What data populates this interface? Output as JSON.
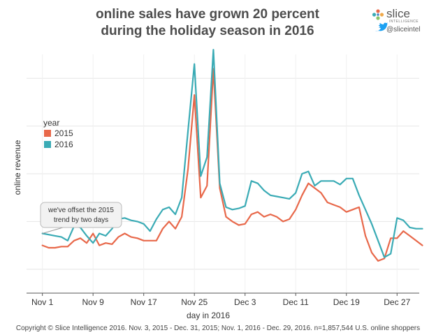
{
  "chart_data": {
    "type": "line",
    "title": "online sales have grown 20 percent during the holiday season in 2016",
    "title_lines": [
      "online sales have grown 20 percent",
      "during the holiday season in 2016"
    ],
    "xlabel": "day in 2016",
    "ylabel": "online revenue",
    "x_start": "Nov 1",
    "x_ticks": [
      {
        "day": 0,
        "label": "Nov 1"
      },
      {
        "day": 8,
        "label": "Nov 9"
      },
      {
        "day": 16,
        "label": "Nov 17"
      },
      {
        "day": 24,
        "label": "Nov 25"
      },
      {
        "day": 32,
        "label": "Dec 3"
      },
      {
        "day": 40,
        "label": "Dec 11"
      },
      {
        "day": 48,
        "label": "Dec 19"
      },
      {
        "day": 56,
        "label": "Dec 27"
      }
    ],
    "xlim": [
      -2.5,
      59.5
    ],
    "ylim": [
      0,
      100
    ],
    "y_gridlines": [
      10,
      30,
      50,
      70,
      90
    ],
    "y_tick_labels_shown": false,
    "legend": {
      "title": "year",
      "position": "left"
    },
    "series": [
      {
        "name": "2015",
        "color": "#e8684a",
        "x_start": 0,
        "values": [
          20,
          19,
          19,
          19.5,
          19.5,
          22,
          23,
          21,
          25,
          20,
          21,
          20.5,
          23.5,
          25,
          23.5,
          23,
          22,
          22,
          22,
          27,
          30,
          27,
          32,
          52,
          83,
          40,
          45,
          94,
          44,
          32,
          30,
          28.5,
          29,
          33,
          34,
          32,
          33,
          32,
          30,
          31,
          35,
          41,
          46,
          44,
          42,
          38,
          37,
          36,
          34,
          35,
          36,
          24,
          17,
          13.5,
          14.5,
          23,
          23,
          26,
          24,
          22,
          20
        ]
      },
      {
        "name": "2016",
        "color": "#3aabb5",
        "x_start": 0,
        "values": [
          25,
          24.5,
          24,
          23.5,
          22,
          28,
          27.5,
          24,
          21,
          25,
          24,
          27,
          31,
          31.5,
          30.5,
          30,
          29,
          26,
          31,
          35,
          36,
          33,
          40,
          68,
          96,
          49,
          57,
          102,
          46,
          36,
          35,
          35.5,
          36.5,
          47,
          46,
          43,
          41,
          40.5,
          40,
          39.5,
          42,
          50,
          51,
          45,
          47,
          47,
          47,
          45.5,
          48,
          48,
          41,
          35,
          29,
          22,
          15,
          16.5,
          31.5,
          30.5,
          27.5,
          27,
          27
        ]
      }
    ],
    "annotation": {
      "text_lines": [
        "we've offset the 2015",
        "trend by two days"
      ],
      "points_to": {
        "series": "2016",
        "day": 0
      }
    }
  },
  "brand": {
    "name": "slice",
    "subtitle": "INTELLIGENCE",
    "handle": "@sliceintel",
    "logo_colors": [
      "#e8684a",
      "#3aabb5",
      "#f0a94a",
      "#8bc56b",
      "#4a86c5"
    ]
  },
  "footer": {
    "text": "Copyright © Slice Intelligence 2016. Nov. 3, 2015 - Dec. 31, 2015; Nov. 1, 2016 - Dec. 29, 2016. n=1,857,544 U.S. online shoppers"
  }
}
